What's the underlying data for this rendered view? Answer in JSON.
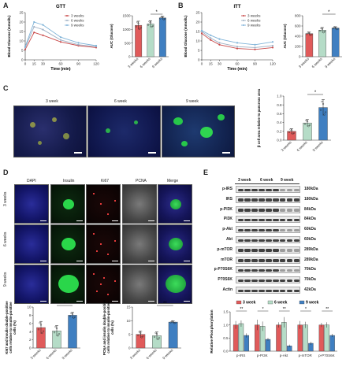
{
  "panels": {
    "A": "A",
    "B": "B",
    "C": "C",
    "D": "D",
    "E": "E"
  },
  "colors": {
    "w3": "#e05a5a",
    "w6": "#b5dcc7",
    "w9": "#3f7fc1",
    "w3_line": "#c94a4a",
    "w6_line": "#9fb1c5",
    "w9_line": "#7fb3d8"
  },
  "legend": {
    "w3": "3 weeks",
    "w6": "6 weeks",
    "w9": "9 weeks"
  },
  "legend_short": {
    "w3": "3 week",
    "w6": "6 week",
    "w9": "9 week"
  },
  "gtt": {
    "title": "GTT",
    "ylabel": "Blood Glucose (mmol/L)",
    "xlabel": "Time (min)",
    "auc_ylabel": "AUC (Glucose)",
    "sig": "*"
  },
  "itt": {
    "title": "ITT",
    "ylabel": "Blood Glucose (mmol/L)",
    "xlabel": "Time (min)",
    "auc_ylabel": "AUC (Glucose)",
    "sig": "*"
  },
  "c": {
    "col_labels": [
      "3 week",
      "6 week",
      "9 week"
    ],
    "ylabel": "β cell area relative to pancreas area",
    "sig": "*"
  },
  "d": {
    "col_labels": [
      "DAPI",
      "Insulin",
      "Ki67",
      "PCNA",
      "Merge"
    ],
    "row_labels": [
      "3 weeks",
      "6 weeks",
      "9 weeks"
    ],
    "ki67_ylabel": "Ki67 and insulin double-positive cells relative to insulin-positive cells (%)",
    "pcna_ylabel": "PCNA and insulin double-positive cells relative to insulin-positive cells (%)",
    "ki67_sig": "*",
    "pcna_sig": "**"
  },
  "e": {
    "proteins": [
      "p-IRS",
      "IRS",
      "p-PI3K",
      "PI3K",
      "p-Akt",
      "Akt",
      "p-mTOR",
      "mTOR",
      "p-P70S6K",
      "P70S6K",
      "Actin"
    ],
    "sizes": [
      "180kDa",
      "180kDa",
      "84kDa",
      "84kDa",
      "60kDa",
      "60kDa",
      "289kDa",
      "289kDa",
      "70kDa",
      "70kDa",
      "42kDa"
    ],
    "ylabel": "Relative Phosphorylation",
    "sigs": [
      "**",
      "*",
      "**",
      "*",
      "**"
    ]
  },
  "chart_data": [
    {
      "type": "line",
      "title": "GTT",
      "xlabel": "Time (min)",
      "ylabel": "Blood Glucose (mmol/L)",
      "x": [
        0,
        15,
        30,
        60,
        90,
        120
      ],
      "xticks": [
        0,
        15,
        30,
        60,
        90,
        120
      ],
      "yticks": [
        0,
        5,
        10,
        15,
        20,
        25
      ],
      "ylim": [
        0,
        25
      ],
      "xlim": [
        0,
        120
      ],
      "series": [
        {
          "name": "3 weeks",
          "values": [
            5.5,
            14.5,
            13.0,
            9.5,
            7.5,
            6.5
          ]
        },
        {
          "name": "6 weeks",
          "values": [
            6.5,
            17.5,
            16.0,
            10.5,
            8.0,
            7.0
          ]
        },
        {
          "name": "9 weeks",
          "values": [
            7.0,
            20.0,
            18.5,
            12.0,
            9.0,
            7.5
          ]
        }
      ]
    },
    {
      "type": "bar",
      "ylabel": "AUC (Glucose)",
      "categories": [
        "3 weeks",
        "6 weeks",
        "9 weeks"
      ],
      "values": [
        1150,
        1200,
        1420
      ],
      "errors": [
        150,
        120,
        60
      ],
      "ylim": [
        0,
        1500
      ],
      "yticks": [
        0,
        500,
        1000,
        1500
      ]
    },
    {
      "type": "line",
      "title": "ITT",
      "xlabel": "Time (min)",
      "ylabel": "Blood Glucose (mmol/L)",
      "x": [
        0,
        15,
        30,
        60,
        90,
        120
      ],
      "xticks": [
        0,
        15,
        30,
        60,
        90,
        120
      ],
      "yticks": [
        0,
        5,
        10,
        15,
        20,
        25
      ],
      "ylim": [
        0,
        25
      ],
      "xlim": [
        0,
        120
      ],
      "series": [
        {
          "name": "3 weeks",
          "values": [
            14.0,
            10.5,
            8.0,
            6.0,
            5.5,
            6.5
          ]
        },
        {
          "name": "6 weeks",
          "values": [
            15.0,
            11.5,
            9.0,
            7.0,
            6.5,
            7.5
          ]
        },
        {
          "name": "9 weeks",
          "values": [
            15.5,
            13.0,
            11.0,
            9.0,
            8.0,
            9.5
          ]
        }
      ]
    },
    {
      "type": "bar",
      "ylabel": "AUC (Glucose)",
      "categories": [
        "3 weeks",
        "6 weeks",
        "9 weeks"
      ],
      "values": [
        450,
        520,
        560
      ],
      "errors": [
        30,
        50,
        25
      ],
      "ylim": [
        0,
        800
      ],
      "yticks": [
        0,
        200,
        400,
        600,
        800
      ]
    },
    {
      "type": "bar",
      "ylabel": "β cell area relative to pancreas area",
      "categories": [
        "3 weeks",
        "6 weeks",
        "9 weeks"
      ],
      "values": [
        0.2,
        0.39,
        0.74
      ],
      "errors": [
        0.06,
        0.08,
        0.18
      ],
      "ylim": [
        0,
        1.0
      ],
      "yticks": [
        0.0,
        0.2,
        0.4,
        0.6,
        0.8,
        1.0
      ]
    },
    {
      "type": "bar",
      "ylabel": "Ki67 and insulin double-positive cells relative to insulin-positive cells (%)",
      "categories": [
        "3 weeks",
        "6 weeks",
        "9 weeks"
      ],
      "values": [
        5.0,
        4.2,
        8.0
      ],
      "errors": [
        1.5,
        1.3,
        0.7
      ],
      "ylim": [
        0,
        10
      ],
      "yticks": [
        0,
        2,
        4,
        6,
        8,
        10
      ]
    },
    {
      "type": "bar",
      "ylabel": "PCNA and insulin double-positive cells relative to insulin-positive cells (%)",
      "categories": [
        "3 weeks",
        "6 weeks",
        "9 weeks"
      ],
      "values": [
        5.0,
        4.5,
        9.5
      ],
      "errors": [
        1.2,
        1.4,
        0.4
      ],
      "ylim": [
        0,
        15
      ],
      "yticks": [
        0,
        5,
        10,
        15
      ]
    },
    {
      "type": "bar",
      "ylabel": "Relative Phosphorylation",
      "categories": [
        "p-IRS",
        "p-PI3K",
        "p-Akt",
        "p-mTOR",
        "p-P70S6K"
      ],
      "ylim": [
        0,
        1.5
      ],
      "yticks": [
        0.0,
        0.5,
        1.0,
        1.5
      ],
      "series": [
        {
          "name": "3 week",
          "values": [
            1.0,
            1.0,
            1.0,
            1.0,
            1.0
          ],
          "errors": [
            0.15,
            0.2,
            0.1,
            0.15,
            0.08
          ]
        },
        {
          "name": "6 week",
          "values": [
            1.05,
            0.95,
            1.1,
            1.0,
            1.0
          ],
          "errors": [
            0.12,
            0.18,
            0.2,
            0.12,
            0.1
          ]
        },
        {
          "name": "9 week",
          "values": [
            0.6,
            0.45,
            0.2,
            0.3,
            0.6
          ],
          "errors": [
            0.08,
            0.06,
            0.05,
            0.06,
            0.06
          ]
        }
      ]
    }
  ]
}
